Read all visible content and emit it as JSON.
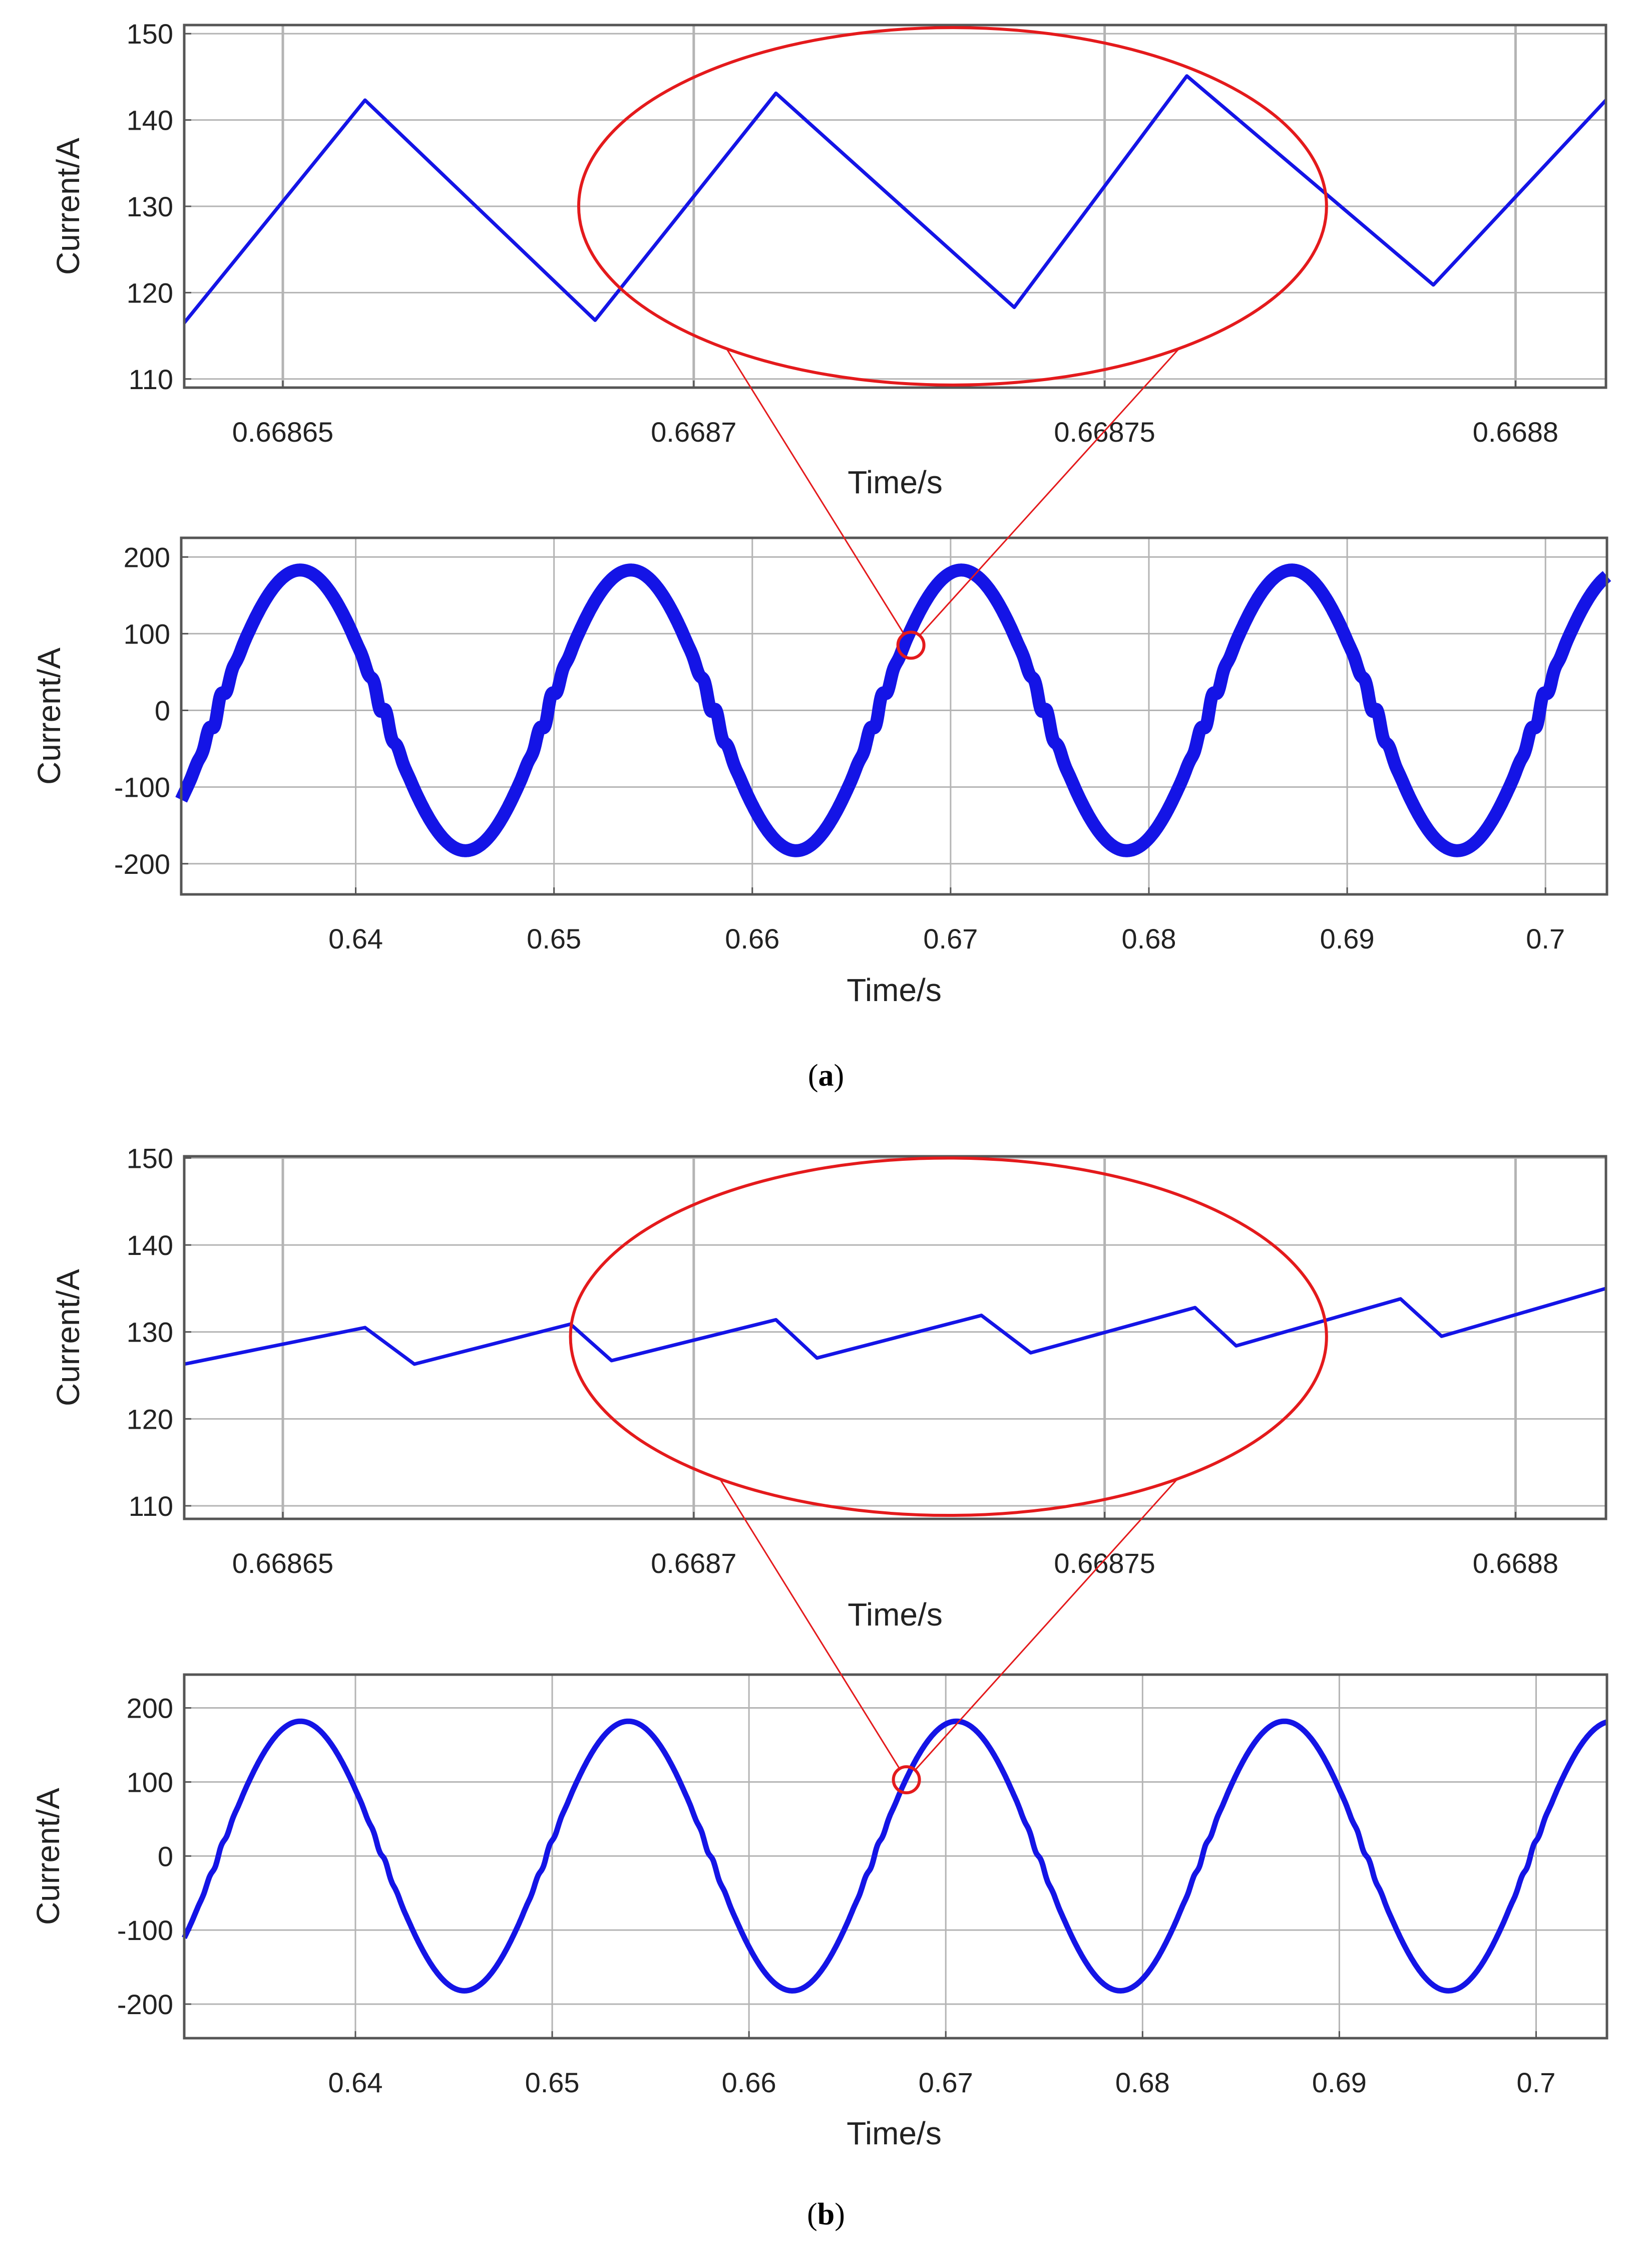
{
  "colors": {
    "trace": "#1414e6",
    "callout": "#e41a1c",
    "grid": "#b4b4b4",
    "frame": "#555555"
  },
  "chart_data": [
    {
      "id": "a-zoom",
      "type": "line",
      "xlabel": "Time/s",
      "ylabel": "Current/A",
      "xlim": [
        0.668638,
        0.668811
      ],
      "ylim": [
        109,
        151
      ],
      "xticks": [
        0.66865,
        0.6687,
        0.66875,
        0.6688
      ],
      "xtick_labels": [
        "0.66865",
        "0.6687",
        "0.66875",
        "0.6688"
      ],
      "yticks": [
        110,
        120,
        130,
        140,
        150
      ],
      "ytick_labels": [
        "110",
        "120",
        "130",
        "140",
        "150"
      ],
      "grid": true,
      "series": [
        {
          "name": "current",
          "x": [
            0.668638,
            0.66866,
            0.668688,
            0.66871,
            0.668739,
            0.66876,
            0.66879,
            0.668811
          ],
          "y": [
            116.5,
            142.3,
            116.8,
            143.1,
            118.3,
            145.1,
            120.9,
            142.3
          ]
        }
      ],
      "callout": {
        "kind": "ellipse",
        "x_range": [
          0.668686,
          0.668777
        ],
        "y_range": [
          109.3,
          150.7
        ]
      }
    },
    {
      "id": "a-full",
      "type": "line",
      "xlabel": "Time/s",
      "ylabel": "Current/A",
      "xlim": [
        0.6312,
        0.7031
      ],
      "ylim": [
        -240,
        225
      ],
      "xticks": [
        0.64,
        0.65,
        0.66,
        0.67,
        0.68,
        0.69,
        0.7
      ],
      "xtick_labels": [
        "0.64",
        "0.65",
        "0.66",
        "0.67",
        "0.68",
        "0.69",
        "0.7"
      ],
      "yticks": [
        -200,
        -100,
        0,
        100,
        200
      ],
      "ytick_labels": [
        "-200",
        "-100",
        "0",
        "100",
        "200"
      ],
      "grid": true,
      "series": [
        {
          "name": "current",
          "waveform": "sine",
          "amplitude_A": 183,
          "period_s": 0.01667,
          "peak_time_s": 0.6372,
          "ripple_A": 10
        }
      ],
      "callout": {
        "kind": "circle",
        "center": [
          0.668,
          85
        ]
      }
    },
    {
      "id": "b-zoom",
      "type": "line",
      "xlabel": "Time/s",
      "ylabel": "Current/A",
      "xlim": [
        0.668638,
        0.668811
      ],
      "ylim": [
        108.5,
        150.2
      ],
      "xticks": [
        0.66865,
        0.6687,
        0.66875,
        0.6688
      ],
      "xtick_labels": [
        "0.66865",
        "0.6687",
        "0.66875",
        "0.6688"
      ],
      "yticks": [
        110,
        120,
        130,
        140,
        150
      ],
      "ytick_labels": [
        "110",
        "120",
        "130",
        "140",
        "150"
      ],
      "grid": true,
      "series": [
        {
          "name": "current",
          "x": [
            0.668638,
            0.66866,
            0.668666,
            0.668685,
            0.66869,
            0.66871,
            0.668715,
            0.668735,
            0.668741,
            0.668761,
            0.668766,
            0.668786,
            0.668791,
            0.668811
          ],
          "y": [
            126.3,
            130.5,
            126.3,
            130.9,
            126.7,
            131.4,
            127.0,
            131.9,
            127.6,
            132.8,
            128.4,
            133.8,
            129.5,
            135.0
          ]
        }
      ],
      "callout": {
        "kind": "ellipse",
        "x_range": [
          0.668685,
          0.668777
        ],
        "y_range": [
          108.9,
          150.0
        ]
      }
    },
    {
      "id": "b-full",
      "type": "line",
      "xlabel": "Time/s",
      "ylabel": "Current/A",
      "xlim": [
        0.6313,
        0.7036
      ],
      "ylim": [
        -246,
        245
      ],
      "xticks": [
        0.64,
        0.65,
        0.66,
        0.67,
        0.68,
        0.69,
        0.7
      ],
      "xtick_labels": [
        "0.64",
        "0.65",
        "0.66",
        "0.67",
        "0.68",
        "0.69",
        "0.7"
      ],
      "yticks": [
        -200,
        -100,
        0,
        100,
        200
      ],
      "ytick_labels": [
        "-200",
        "-100",
        "0",
        "100",
        "200"
      ],
      "grid": true,
      "series": [
        {
          "name": "current",
          "waveform": "sine",
          "amplitude_A": 182,
          "period_s": 0.01667,
          "peak_time_s": 0.6372,
          "ripple_A": 4
        }
      ],
      "callout": {
        "kind": "circle",
        "center": [
          0.668,
          103
        ]
      }
    }
  ],
  "captions": {
    "a": {
      "open": "(",
      "letter": "a",
      "close": ")"
    },
    "b": {
      "open": "(",
      "letter": "b",
      "close": ")"
    }
  }
}
